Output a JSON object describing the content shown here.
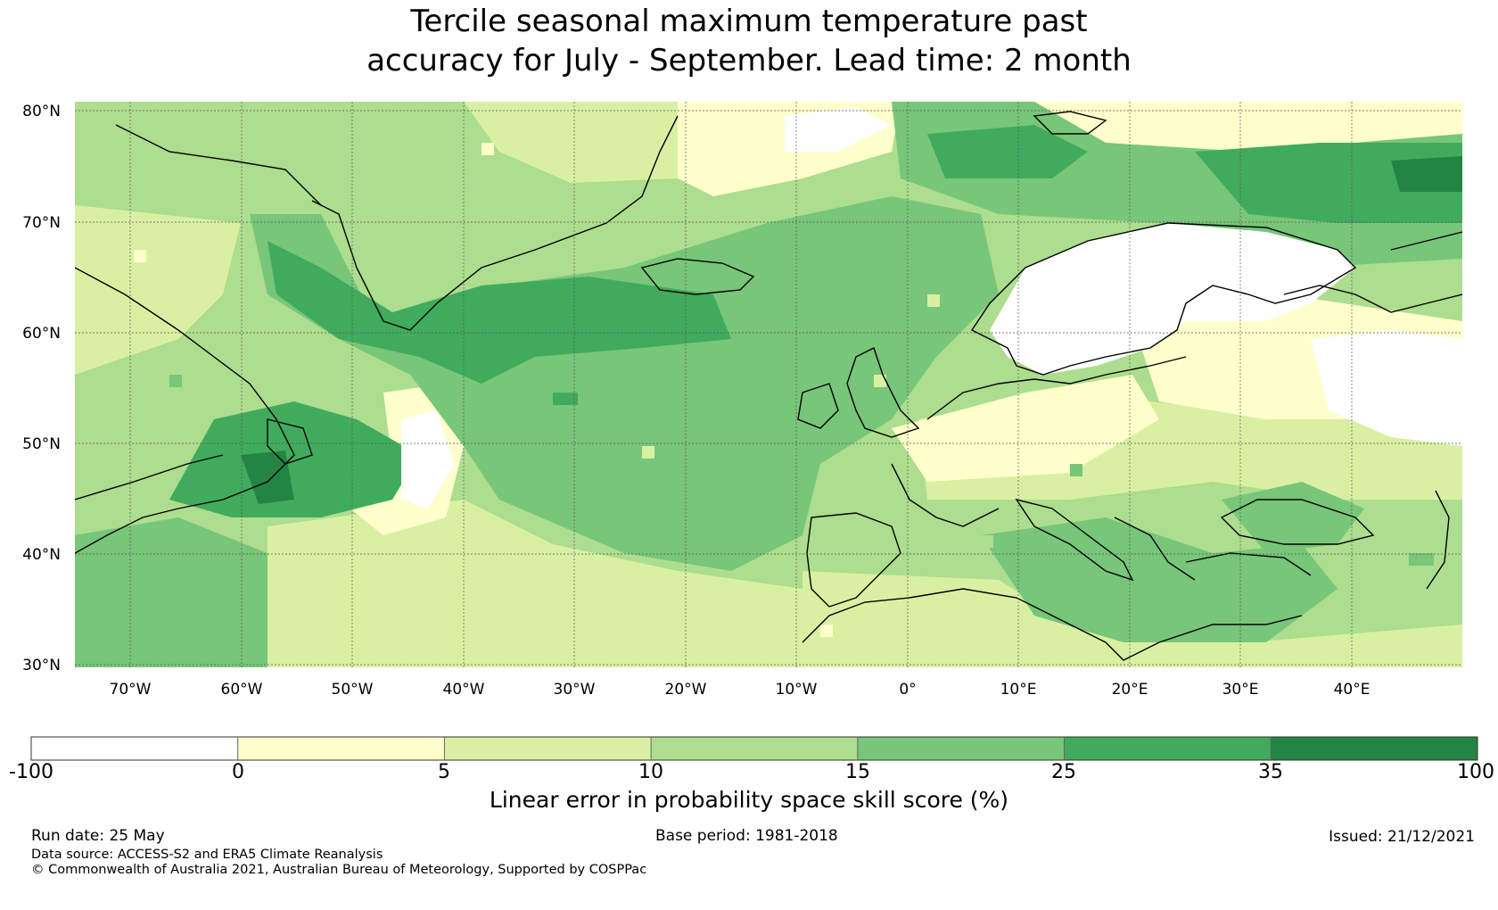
{
  "title": {
    "line1": "Tercile seasonal maximum temperature past",
    "line2": "accuracy for July - September. Lead time: 2 month"
  },
  "map": {
    "lat_labels": [
      "80°N",
      "70°N",
      "60°N",
      "50°N",
      "40°N",
      "30°N"
    ],
    "lon_labels": [
      "70°W",
      "60°W",
      "50°W",
      "40°W",
      "30°W",
      "20°W",
      "10°W",
      "0°",
      "10°E",
      "20°E",
      "30°E",
      "40°E"
    ],
    "extent": {
      "lon": [
        -75,
        50
      ],
      "lat": [
        30,
        81
      ]
    },
    "gridlines": true
  },
  "colorbar": {
    "labels": [
      "-100",
      "0",
      "5",
      "10",
      "15",
      "25",
      "35",
      "100"
    ],
    "colors": [
      "#ffffff",
      "#ffffcc",
      "#d9f0a3",
      "#addd8e",
      "#78c679",
      "#41ab5d",
      "#238443"
    ],
    "title": "Linear error in probability space skill score (%)"
  },
  "footer": {
    "run_date": "Run date: 25 May",
    "base_period": "Base period: 1981-2018",
    "issued": "Issued: 21/12/2021",
    "data_source": "Data source: ACCESS-S2 and ERA5 Climate Reanalysis",
    "copyright": "© Commonwealth of Australia 2021, Australian Bureau of Meteorology, Supported by COSPPac"
  }
}
